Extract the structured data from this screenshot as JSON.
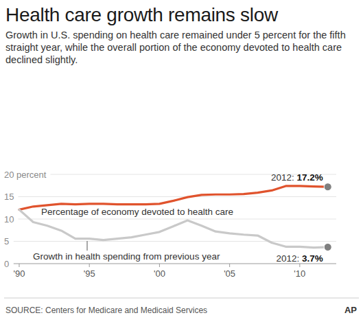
{
  "chart_data": {
    "type": "line",
    "title": "Health care growth remains slow",
    "subtitle": "Growth in U.S. spending on health care remained under 5 percent for the fifth straight year, while the overall portion of the economy devoted to health care declined slightly.",
    "source": "SOURCE: Centers for Medicare and Medicaid Services",
    "credit": "AP",
    "x": [
      1990,
      1991,
      1992,
      1993,
      1994,
      1995,
      1996,
      1997,
      1998,
      1999,
      2000,
      2001,
      2002,
      2003,
      2004,
      2005,
      2006,
      2007,
      2008,
      2009,
      2010,
      2011,
      2012
    ],
    "series": [
      {
        "name": "Percentage of economy devoted to health care",
        "color": "#e0532d",
        "marker": "circle",
        "end_label": "2012: 17.2%",
        "values": [
          12.1,
          12.8,
          13.1,
          13.4,
          13.3,
          13.4,
          13.4,
          13.3,
          13.3,
          13.3,
          13.4,
          14.1,
          14.9,
          15.4,
          15.5,
          15.5,
          15.6,
          15.9,
          16.4,
          17.4,
          17.4,
          17.3,
          17.2
        ]
      },
      {
        "name": "Growth in health spending from previous year",
        "color": "#c9c9c9",
        "marker": "circle",
        "end_label": "2012: 3.7%",
        "values": [
          12.1,
          9.3,
          8.5,
          7.4,
          5.6,
          5.6,
          5.3,
          5.6,
          5.9,
          6.5,
          7.1,
          8.4,
          9.7,
          8.5,
          7.2,
          6.8,
          6.5,
          6.3,
          4.7,
          3.8,
          3.8,
          3.6,
          3.7
        ]
      }
    ],
    "xlim": [
      1989.6,
      2012.6
    ],
    "xticks": [
      {
        "value": 1990,
        "label": "'90"
      },
      {
        "value": 1995,
        "label": "'95"
      },
      {
        "value": 2000,
        "label": "'00"
      },
      {
        "value": 2005,
        "label": "'05"
      },
      {
        "value": 2010,
        "label": "'10"
      }
    ],
    "ylim": [
      0,
      20
    ],
    "yticks": [
      0,
      5,
      10,
      15,
      {
        "value": 20,
        "label": "20 percent"
      }
    ],
    "grid": true
  }
}
